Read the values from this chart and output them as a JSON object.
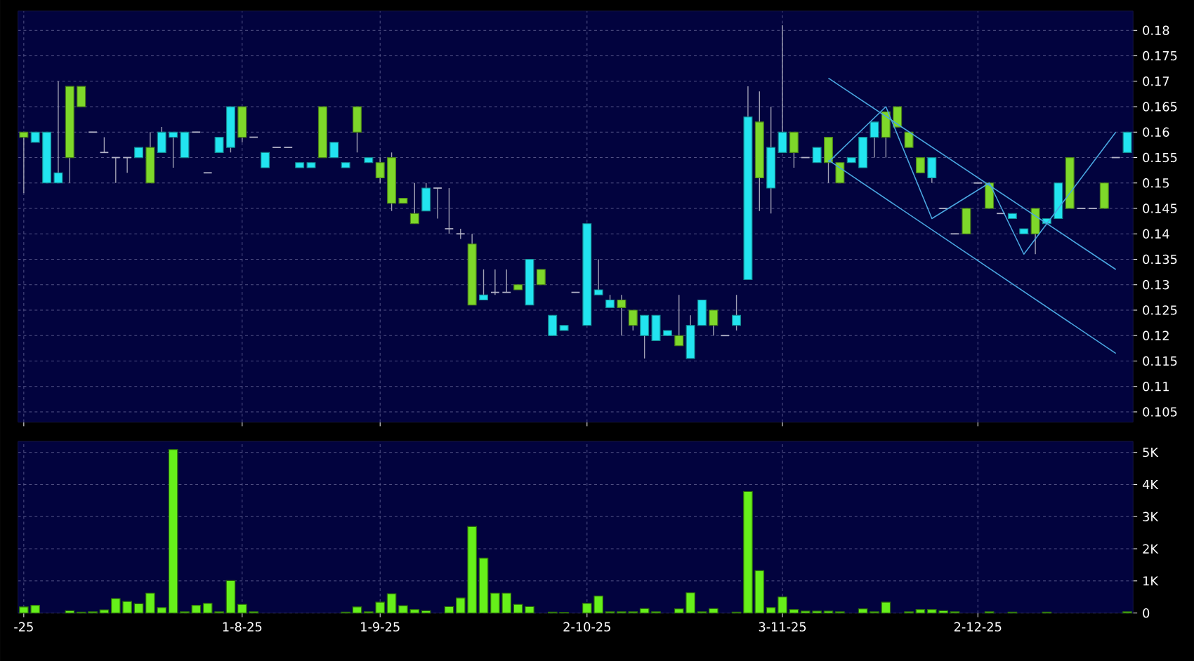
{
  "chart_data": [
    {
      "type": "candlestick",
      "categories": [
        null,
        null,
        null,
        null,
        null,
        null,
        null,
        null,
        null,
        null,
        null,
        null,
        null,
        null,
        null,
        null,
        null,
        null,
        null,
        null,
        null,
        null,
        null,
        null,
        null,
        null,
        null,
        null,
        null,
        null,
        null,
        null,
        null,
        null,
        null,
        null,
        null,
        null,
        null,
        null,
        null,
        null,
        null,
        null,
        null,
        null,
        null,
        null,
        null,
        null,
        null,
        null,
        null,
        null,
        null,
        null,
        null,
        null,
        null,
        null,
        null,
        null,
        null,
        null,
        null,
        null,
        null,
        null,
        null,
        null,
        null,
        null,
        null,
        null,
        null,
        null,
        null,
        null,
        null,
        null,
        null,
        null,
        null,
        null,
        null,
        null,
        null,
        null,
        null,
        null,
        null,
        null,
        null,
        null,
        null,
        null,
        null
      ],
      "ohlc": [
        [
          0.16,
          0.16,
          0.148,
          0.159
        ],
        [
          0.158,
          0.16,
          0.158,
          0.16
        ],
        [
          0.15,
          0.16,
          0.15,
          0.16
        ],
        [
          0.15,
          0.17,
          0.15,
          0.152
        ],
        [
          0.169,
          0.169,
          0.15,
          0.155
        ],
        [
          0.169,
          0.169,
          0.165,
          0.165
        ],
        [
          0.16,
          0.16,
          0.16,
          0.16
        ],
        [
          0.156,
          0.159,
          0.156,
          0.156
        ],
        [
          0.155,
          0.155,
          0.15,
          0.155
        ],
        [
          0.155,
          0.155,
          0.152,
          0.155
        ],
        [
          0.155,
          0.157,
          0.155,
          0.157
        ],
        [
          0.157,
          0.16,
          0.15,
          0.15
        ],
        [
          0.156,
          0.161,
          0.156,
          0.16
        ],
        [
          0.159,
          0.16,
          0.153,
          0.16
        ],
        [
          0.155,
          0.16,
          0.155,
          0.16
        ],
        [
          0.16,
          0.16,
          0.16,
          0.16
        ],
        [
          0.152,
          0.152,
          0.152,
          0.152
        ],
        [
          0.156,
          0.159,
          0.156,
          0.159
        ],
        [
          0.157,
          0.165,
          0.156,
          0.165
        ],
        [
          0.165,
          0.165,
          0.158,
          0.159
        ],
        [
          0.159,
          0.159,
          0.159,
          0.159
        ],
        [
          0.153,
          0.156,
          0.153,
          0.156
        ],
        [
          0.157,
          0.157,
          0.157,
          0.157
        ],
        [
          0.157,
          0.157,
          0.157,
          0.157
        ],
        [
          0.153,
          0.154,
          0.153,
          0.154
        ],
        [
          0.153,
          0.154,
          0.153,
          0.154
        ],
        [
          0.165,
          0.165,
          0.155,
          0.155
        ],
        [
          0.155,
          0.158,
          0.155,
          0.158
        ],
        [
          0.153,
          0.154,
          0.153,
          0.154
        ],
        [
          0.165,
          0.165,
          0.156,
          0.16
        ],
        [
          0.154,
          0.155,
          0.154,
          0.155
        ],
        [
          0.154,
          0.155,
          0.15,
          0.151
        ],
        [
          0.155,
          0.156,
          0.1445,
          0.146
        ],
        [
          0.147,
          0.147,
          0.146,
          0.146
        ],
        [
          0.144,
          0.15,
          0.142,
          0.142
        ],
        [
          0.1445,
          0.15,
          0.1445,
          0.149
        ],
        [
          0.149,
          0.149,
          0.143,
          0.149
        ],
        [
          0.141,
          0.149,
          0.14,
          0.141
        ],
        [
          0.14,
          0.141,
          0.139,
          0.14
        ],
        [
          0.138,
          0.14,
          0.126,
          0.126
        ],
        [
          0.127,
          0.133,
          0.127,
          0.128
        ],
        [
          0.1285,
          0.133,
          0.128,
          0.1285
        ],
        [
          0.1285,
          0.133,
          0.1285,
          0.1285
        ],
        [
          0.13,
          0.13,
          0.129,
          0.129
        ],
        [
          0.126,
          0.135,
          0.126,
          0.135
        ],
        [
          0.133,
          0.133,
          0.13,
          0.13
        ],
        [
          0.12,
          0.124,
          0.12,
          0.124
        ],
        [
          0.121,
          0.122,
          0.121,
          0.122
        ],
        [
          0.1285,
          0.1285,
          0.1285,
          0.1285
        ],
        [
          0.122,
          0.142,
          0.122,
          0.142
        ],
        [
          0.128,
          0.135,
          0.128,
          0.129
        ],
        [
          0.1255,
          0.128,
          0.1255,
          0.127
        ],
        [
          0.127,
          0.128,
          0.12,
          0.1255
        ],
        [
          0.125,
          0.125,
          0.121,
          0.122
        ],
        [
          0.12,
          0.124,
          0.1155,
          0.124
        ],
        [
          0.119,
          0.124,
          0.119,
          0.124
        ],
        [
          0.12,
          0.121,
          0.12,
          0.121
        ],
        [
          0.12,
          0.128,
          0.118,
          0.118
        ],
        [
          0.1155,
          0.124,
          0.1155,
          0.122
        ],
        [
          0.122,
          0.127,
          0.122,
          0.127
        ],
        [
          0.125,
          0.125,
          0.12,
          0.122
        ],
        [
          0.12,
          0.12,
          0.12,
          0.12
        ],
        [
          0.122,
          0.128,
          0.121,
          0.124
        ],
        [
          0.131,
          0.169,
          0.131,
          0.163
        ],
        [
          0.162,
          0.168,
          0.1445,
          0.151
        ],
        [
          0.149,
          0.165,
          0.144,
          0.157
        ],
        [
          0.156,
          0.181,
          0.156,
          0.16
        ],
        [
          0.16,
          0.16,
          0.153,
          0.156
        ],
        [
          0.155,
          0.155,
          0.155,
          0.155
        ],
        [
          0.154,
          0.157,
          0.154,
          0.157
        ],
        [
          0.159,
          0.159,
          0.15,
          0.154
        ],
        [
          0.154,
          0.154,
          0.15,
          0.15
        ],
        [
          0.154,
          0.155,
          0.154,
          0.155
        ],
        [
          0.153,
          0.159,
          0.153,
          0.159
        ],
        [
          0.159,
          0.162,
          0.155,
          0.162
        ],
        [
          0.164,
          0.164,
          0.155,
          0.159
        ],
        [
          0.165,
          0.165,
          0.161,
          0.161
        ],
        [
          0.16,
          0.16,
          0.157,
          0.157
        ],
        [
          0.155,
          0.155,
          0.152,
          0.152
        ],
        [
          0.151,
          0.155,
          0.15,
          0.155
        ],
        [
          0.145,
          0.145,
          0.145,
          0.145
        ],
        [
          0.14,
          0.14,
          0.14,
          0.14
        ],
        [
          0.145,
          0.145,
          0.14,
          0.14
        ],
        [
          0.15,
          0.15,
          0.15,
          0.15
        ],
        [
          0.15,
          0.15,
          0.145,
          0.145
        ],
        [
          0.144,
          0.144,
          0.144,
          0.144
        ],
        [
          0.143,
          0.144,
          0.143,
          0.144
        ],
        [
          0.14,
          0.141,
          0.14,
          0.141
        ],
        [
          0.145,
          0.145,
          0.136,
          0.14
        ],
        [
          0.142,
          0.143,
          0.142,
          0.143
        ],
        [
          0.143,
          0.15,
          0.143,
          0.15
        ],
        [
          0.155,
          0.155,
          0.145,
          0.145
        ],
        [
          0.145,
          0.145,
          0.145,
          0.145
        ],
        [
          0.145,
          0.145,
          0.145,
          0.145
        ],
        [
          0.15,
          0.15,
          0.145,
          0.145
        ],
        [
          0.155,
          0.155,
          0.155,
          0.155
        ],
        [
          0.156,
          0.16,
          0.156,
          0.16
        ]
      ],
      "colors": [
        "#7ed82a",
        "#22e4f0",
        "#22e4f0",
        "#22e4f0",
        "#7ed82a",
        "#7ed82a",
        "#b4b4c8",
        "#b4b4c8",
        "#b4b4c8",
        "#b4b4c8",
        "#22e4f0",
        "#7ed82a",
        "#22e4f0",
        "#22e4f0",
        "#22e4f0",
        "#b4b4c8",
        "#b4b4c8",
        "#22e4f0",
        "#22e4f0",
        "#7ed82a",
        "#b4b4c8",
        "#22e4f0",
        "#b4b4c8",
        "#b4b4c8",
        "#22e4f0",
        "#22e4f0",
        "#7ed82a",
        "#22e4f0",
        "#22e4f0",
        "#7ed82a",
        "#22e4f0",
        "#7ed82a",
        "#7ed82a",
        "#7ed82a",
        "#7ed82a",
        "#22e4f0",
        "#b4b4c8",
        "#b4b4c8",
        "#b4b4c8",
        "#7ed82a",
        "#22e4f0",
        "#b4b4c8",
        "#b4b4c8",
        "#7ed82a",
        "#22e4f0",
        "#7ed82a",
        "#22e4f0",
        "#22e4f0",
        "#b4b4c8",
        "#22e4f0",
        "#22e4f0",
        "#22e4f0",
        "#7ed82a",
        "#7ed82a",
        "#22e4f0",
        "#22e4f0",
        "#22e4f0",
        "#7ed82a",
        "#22e4f0",
        "#22e4f0",
        "#7ed82a",
        "#b4b4c8",
        "#22e4f0",
        "#22e4f0",
        "#7ed82a",
        "#22e4f0",
        "#22e4f0",
        "#7ed82a",
        "#b4b4c8",
        "#22e4f0",
        "#7ed82a",
        "#7ed82a",
        "#22e4f0",
        "#22e4f0",
        "#22e4f0",
        "#7ed82a",
        "#7ed82a",
        "#7ed82a",
        "#7ed82a",
        "#22e4f0",
        "#b4b4c8",
        "#b4b4c8",
        "#7ed82a",
        "#b4b4c8",
        "#7ed82a",
        "#b4b4c8",
        "#22e4f0",
        "#22e4f0",
        "#7ed82a",
        "#22e4f0",
        "#22e4f0",
        "#7ed82a",
        "#b4b4c8",
        "#b4b4c8",
        "#7ed82a",
        "#b4b4c8",
        "#22e4f0"
      ],
      "series": [
        {
          "type": "line",
          "color": "#4aa6e0",
          "values": [
            null,
            null,
            null,
            null,
            null,
            null,
            null,
            null,
            null,
            null,
            null,
            null,
            null,
            null,
            null,
            null,
            null,
            null,
            null,
            null,
            null,
            null,
            null,
            null,
            null,
            null,
            null,
            null,
            null,
            null,
            null,
            null,
            null,
            null,
            null,
            null,
            null,
            null,
            null,
            null,
            null,
            null,
            null,
            null,
            null,
            null,
            null,
            null,
            null,
            null,
            null,
            null,
            null,
            null,
            null,
            null,
            null,
            null,
            null,
            null,
            null,
            null,
            null,
            null,
            null,
            null,
            null,
            null,
            null,
            null,
            0.1706,
            null,
            null,
            null,
            null,
            null,
            null,
            null,
            null,
            null,
            null,
            null,
            null,
            null,
            null,
            null,
            null,
            null,
            null,
            null,
            null,
            null,
            null,
            null,
            null,
            0.133,
            null
          ]
        },
        {
          "type": "line",
          "color": "#4aa6e0",
          "values": [
            null,
            null,
            null,
            null,
            null,
            null,
            null,
            null,
            null,
            null,
            null,
            null,
            null,
            null,
            null,
            null,
            null,
            null,
            null,
            null,
            null,
            null,
            null,
            null,
            null,
            null,
            null,
            null,
            null,
            null,
            null,
            null,
            null,
            null,
            null,
            null,
            null,
            null,
            null,
            null,
            null,
            null,
            null,
            null,
            null,
            null,
            null,
            null,
            null,
            null,
            null,
            null,
            null,
            null,
            null,
            null,
            null,
            null,
            null,
            null,
            null,
            null,
            null,
            null,
            null,
            null,
            null,
            null,
            null,
            null,
            0.1545,
            null,
            null,
            null,
            null,
            null,
            null,
            null,
            null,
            null,
            null,
            null,
            null,
            null,
            null,
            null,
            null,
            null,
            null,
            null,
            null,
            null,
            null,
            null,
            null,
            0.1165,
            null
          ]
        },
        {
          "type": "line",
          "color": "#4aa6e0",
          "values": [
            null,
            null,
            null,
            null,
            null,
            null,
            null,
            null,
            null,
            null,
            null,
            null,
            null,
            null,
            null,
            null,
            null,
            null,
            null,
            null,
            null,
            null,
            null,
            null,
            null,
            null,
            null,
            null,
            null,
            null,
            null,
            null,
            null,
            null,
            null,
            null,
            null,
            null,
            null,
            null,
            null,
            null,
            null,
            null,
            null,
            null,
            null,
            null,
            null,
            null,
            null,
            null,
            null,
            null,
            null,
            null,
            null,
            null,
            null,
            null,
            null,
            null,
            null,
            null,
            null,
            null,
            null,
            null,
            null,
            null,
            0.1541,
            null,
            null,
            null,
            null,
            0.165,
            null,
            null,
            null,
            0.143,
            null,
            null,
            null,
            null,
            0.15,
            null,
            null,
            0.136,
            null,
            0.142,
            null,
            null,
            null,
            null,
            null,
            0.16,
            null
          ]
        }
      ],
      "ylim": [
        0.103,
        0.1838
      ],
      "yticks": [
        0.105,
        0.11,
        0.115,
        0.12,
        0.125,
        0.13,
        0.135,
        0.14,
        0.145,
        0.15,
        0.155,
        0.16,
        0.165,
        0.17,
        0.175,
        0.18
      ],
      "tick_labels": "y",
      "grid": true
    },
    {
      "type": "bar",
      "categories": [
        "-25",
        null,
        null,
        null,
        null,
        null,
        null,
        null,
        null,
        null,
        null,
        null,
        null,
        null,
        null,
        null,
        null,
        null,
        null,
        "1-8-25",
        null,
        null,
        null,
        null,
        null,
        null,
        null,
        null,
        null,
        null,
        null,
        "1-9-25",
        null,
        null,
        null,
        null,
        null,
        null,
        null,
        null,
        null,
        null,
        null,
        null,
        null,
        null,
        null,
        null,
        null,
        "2-10-25",
        null,
        null,
        null,
        null,
        null,
        null,
        null,
        null,
        null,
        null,
        null,
        null,
        null,
        null,
        null,
        null,
        "3-11-25",
        null,
        null,
        null,
        null,
        null,
        null,
        null,
        null,
        null,
        null,
        null,
        null,
        null,
        null,
        null,
        null,
        "2-12-25",
        null,
        null,
        null,
        null,
        null,
        null,
        null,
        null,
        null,
        null,
        null,
        null,
        null
      ],
      "values": [
        190,
        240,
        null,
        null,
        70,
        30,
        40,
        100,
        450,
        360,
        290,
        620,
        170,
        5090,
        40,
        240,
        300,
        40,
        1010,
        270,
        40,
        null,
        null,
        null,
        null,
        null,
        null,
        null,
        30,
        190,
        40,
        340,
        600,
        230,
        110,
        70,
        null,
        200,
        470,
        2690,
        1710,
        620,
        620,
        270,
        200,
        null,
        30,
        20,
        null,
        300,
        530,
        40,
        40,
        40,
        140,
        40,
        null,
        130,
        630,
        40,
        140,
        null,
        30,
        3780,
        1320,
        170,
        500,
        110,
        60,
        60,
        60,
        40,
        null,
        130,
        40,
        340,
        null,
        40,
        110,
        110,
        70,
        40,
        null,
        null,
        40,
        null,
        30,
        null,
        null,
        30,
        null,
        null,
        null,
        null,
        null,
        null,
        40
      ],
      "color": "#66f01a",
      "ylim": [
        0,
        5340
      ],
      "yticks": [
        0,
        {
          "value": 1000,
          "label": "1K"
        },
        {
          "value": 2000,
          "label": "2K"
        },
        {
          "value": 3000,
          "label": "3K"
        },
        {
          "value": 4000,
          "label": "4K"
        },
        {
          "value": 5000,
          "label": "5K"
        }
      ],
      "grid": true
    }
  ]
}
